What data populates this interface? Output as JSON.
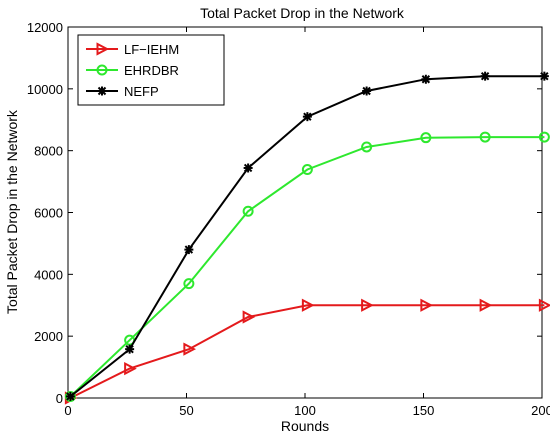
{
  "chart_data": {
    "type": "line",
    "title": "Total Packet Drop in the Network",
    "xlabel": "Rounds",
    "ylabel": "Total Packet Drop in the Network",
    "xlim": [
      0,
      200
    ],
    "ylim": [
      0,
      12000
    ],
    "xticks": [
      0,
      50,
      100,
      150,
      200
    ],
    "yticks": [
      0,
      2000,
      4000,
      6000,
      8000,
      10000,
      12000
    ],
    "grid": false,
    "legend_position": "top-left",
    "series": [
      {
        "name": "LF−IEHM",
        "color": "#e41a1c",
        "marker": "triangle-right",
        "x": [
          1,
          26,
          51,
          76,
          101,
          126,
          151,
          176,
          201
        ],
        "y": [
          0,
          950,
          1580,
          2620,
          3000,
          3000,
          3000,
          3000,
          3000
        ]
      },
      {
        "name": "EHRDBR",
        "color": "#2ee82e",
        "marker": "circle",
        "x": [
          1,
          26,
          51,
          76,
          101,
          126,
          151,
          176,
          201
        ],
        "y": [
          50,
          1870,
          3700,
          6040,
          7390,
          8120,
          8420,
          8440,
          8440
        ]
      },
      {
        "name": "NEFP",
        "color": "#000000",
        "marker": "star",
        "x": [
          1,
          26,
          51,
          76,
          101,
          126,
          151,
          176,
          201
        ],
        "y": [
          50,
          1580,
          4800,
          7440,
          9100,
          9930,
          10310,
          10410,
          10410
        ]
      }
    ]
  }
}
